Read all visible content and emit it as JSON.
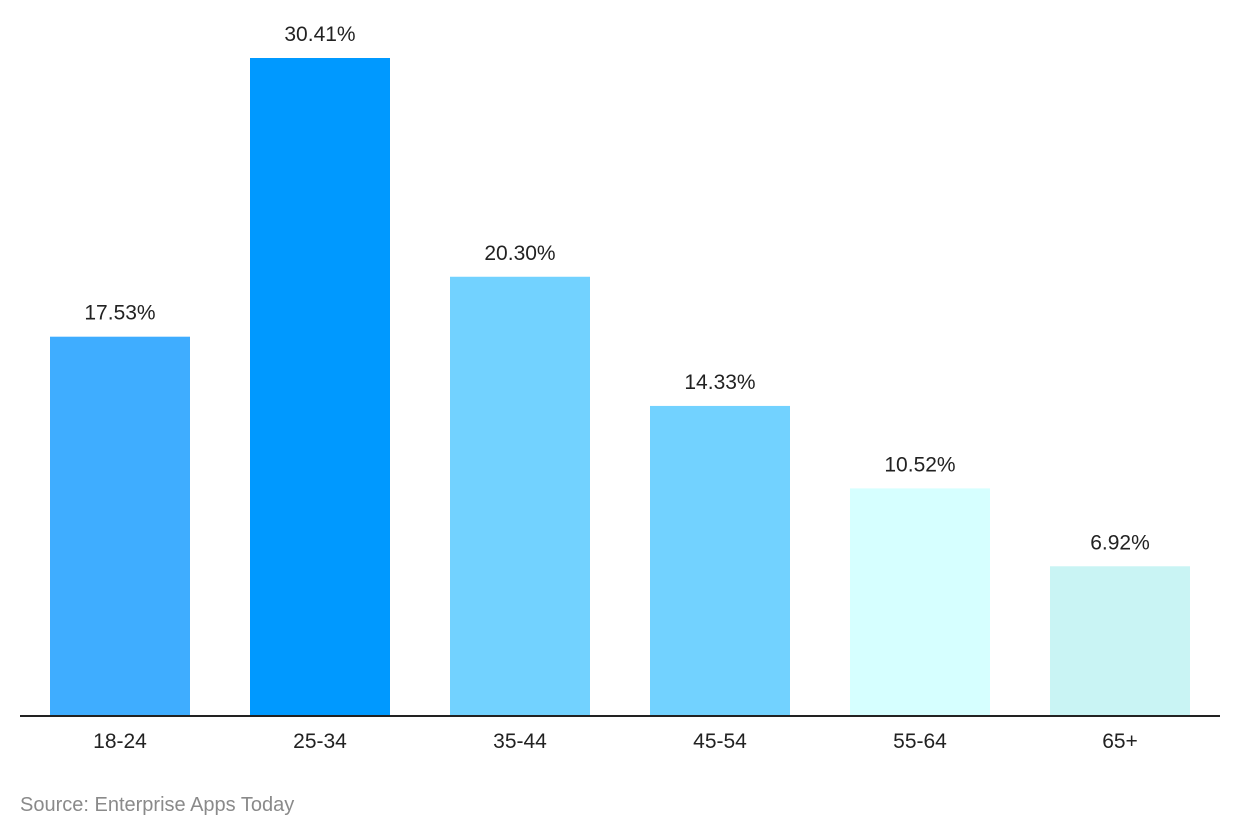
{
  "chart_data": {
    "type": "bar",
    "title": "",
    "xlabel": "",
    "ylabel": "",
    "categories": [
      "18-24",
      "25-34",
      "35-44",
      "45-54",
      "55-64",
      "65+"
    ],
    "values": [
      17.53,
      30.41,
      20.3,
      14.33,
      10.52,
      6.92
    ],
    "value_labels": [
      "17.53%",
      "30.41%",
      "20.30%",
      "14.33%",
      "10.52%",
      "6.92%"
    ],
    "bar_colors": [
      "#3fadff",
      "#0099ff",
      "#72d2ff",
      "#72d2ff",
      "#d6ffff",
      "#c9f4f4"
    ],
    "ylim": [
      0,
      30.41
    ],
    "grid": false,
    "legend": "none",
    "axis_color": "#222222"
  },
  "source": "Source: Enterprise Apps Today"
}
